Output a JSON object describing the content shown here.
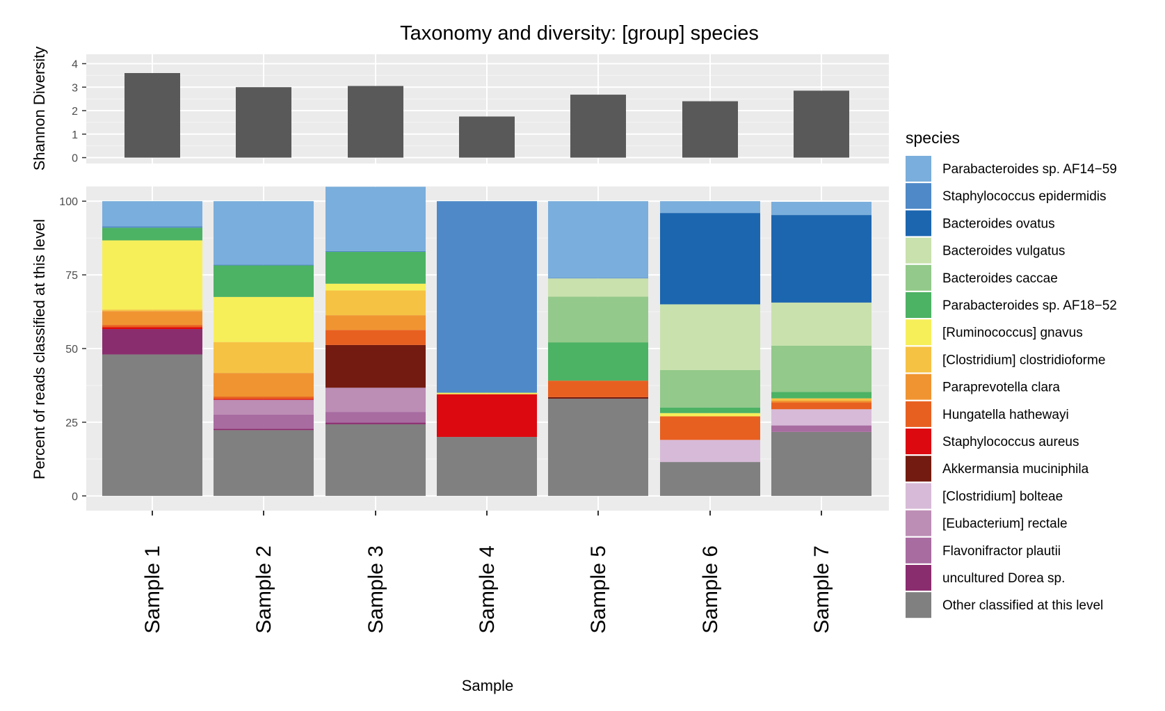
{
  "chart_data": {
    "title": "Taxonomy and diversity: [group] species",
    "xlabel": "Sample",
    "categories": [
      "Sample 1",
      "Sample 2",
      "Sample 3",
      "Sample 4",
      "Sample 5",
      "Sample 6",
      "Sample 7"
    ],
    "diversity": {
      "type": "bar",
      "ylabel": "Shannon Diversity",
      "ylim": [
        0,
        4.4
      ],
      "yticks": [
        0,
        1,
        2,
        3,
        4
      ],
      "values": [
        3.6,
        3.0,
        3.05,
        1.75,
        2.68,
        2.4,
        2.85
      ]
    },
    "composition": {
      "type": "stacked-bar",
      "ylabel": "Percent of reads classified at this level",
      "ylim": [
        0,
        100
      ],
      "yticks": [
        0,
        25,
        50,
        75,
        100
      ],
      "legend_title": "species",
      "legend_position": "right",
      "series": [
        {
          "name": "Parabacteroides sp. AF14−59",
          "color": "#7aaedc",
          "values": [
            8.5,
            21.5,
            21.8,
            0,
            26,
            4,
            4.5
          ]
        },
        {
          "name": "Staphylococcus epidermidis",
          "color": "#4f89c8",
          "values": [
            0.5,
            0.3,
            0.3,
            65,
            0.2,
            0,
            0
          ]
        },
        {
          "name": "Bacteroides ovatus",
          "color": "#1c66b0",
          "values": [
            0,
            0,
            0,
            0,
            0,
            31,
            29.7
          ]
        },
        {
          "name": "Bacteroides vulgatus",
          "color": "#c9e1ad",
          "values": [
            0,
            0,
            0,
            0,
            6.2,
            22.3,
            14.6
          ]
        },
        {
          "name": "Bacteroides caccae",
          "color": "#93c98a",
          "values": [
            0,
            0,
            0,
            0,
            15.5,
            12.7,
            15.7
          ]
        },
        {
          "name": "Parabacteroides sp. AF18−52",
          "color": "#4cb264",
          "values": [
            4.3,
            10.7,
            10.8,
            0,
            13,
            1.9,
            2.2
          ]
        },
        {
          "name": "[Ruminococcus] gnavus",
          "color": "#f6ef5a",
          "values": [
            23.5,
            15.3,
            2.3,
            0.5,
            0,
            1.1,
            0
          ]
        },
        {
          "name": "[Clostridium] clostridioforme",
          "color": "#f6c244",
          "values": [
            0.5,
            10.5,
            8.4,
            0,
            0,
            0,
            0.8
          ]
        },
        {
          "name": "Paraprevotella clara",
          "color": "#f09431",
          "values": [
            4.7,
            8,
            5,
            0,
            0,
            0,
            0.6
          ]
        },
        {
          "name": "Hungatella hathewayi",
          "color": "#e86020",
          "values": [
            0.8,
            0.8,
            5.1,
            0,
            5.6,
            8,
            2.3
          ]
        },
        {
          "name": "Staphylococcus aureus",
          "color": "#dc0a10",
          "values": [
            0.6,
            0.3,
            0,
            14.5,
            0,
            0,
            0
          ]
        },
        {
          "name": "Akkermansia muciniphila",
          "color": "#731b10",
          "values": [
            0,
            0,
            14.5,
            0,
            0.5,
            0,
            0
          ]
        },
        {
          "name": "[Clostridium] bolteae",
          "color": "#d7bad8",
          "values": [
            0,
            0,
            0,
            0,
            0,
            7.5,
            5.5
          ]
        },
        {
          "name": "[Eubacterium] rectale",
          "color": "#bc8db5",
          "values": [
            0,
            5,
            8.2,
            0,
            0,
            0,
            0
          ]
        },
        {
          "name": "Flavonifractor plautii",
          "color": "#a86ca1",
          "values": [
            0,
            4.8,
            3.6,
            0,
            0,
            0,
            2.2
          ]
        },
        {
          "name": "uncultured Dorea sp.",
          "color": "#8a2d6e",
          "values": [
            8.6,
            0.5,
            0.6,
            0,
            0,
            0,
            0
          ]
        },
        {
          "name": "Other classified at this level",
          "color": "#808080",
          "values": [
            48,
            22.3,
            24.3,
            20,
            33,
            11.5,
            21.7
          ]
        }
      ]
    }
  }
}
